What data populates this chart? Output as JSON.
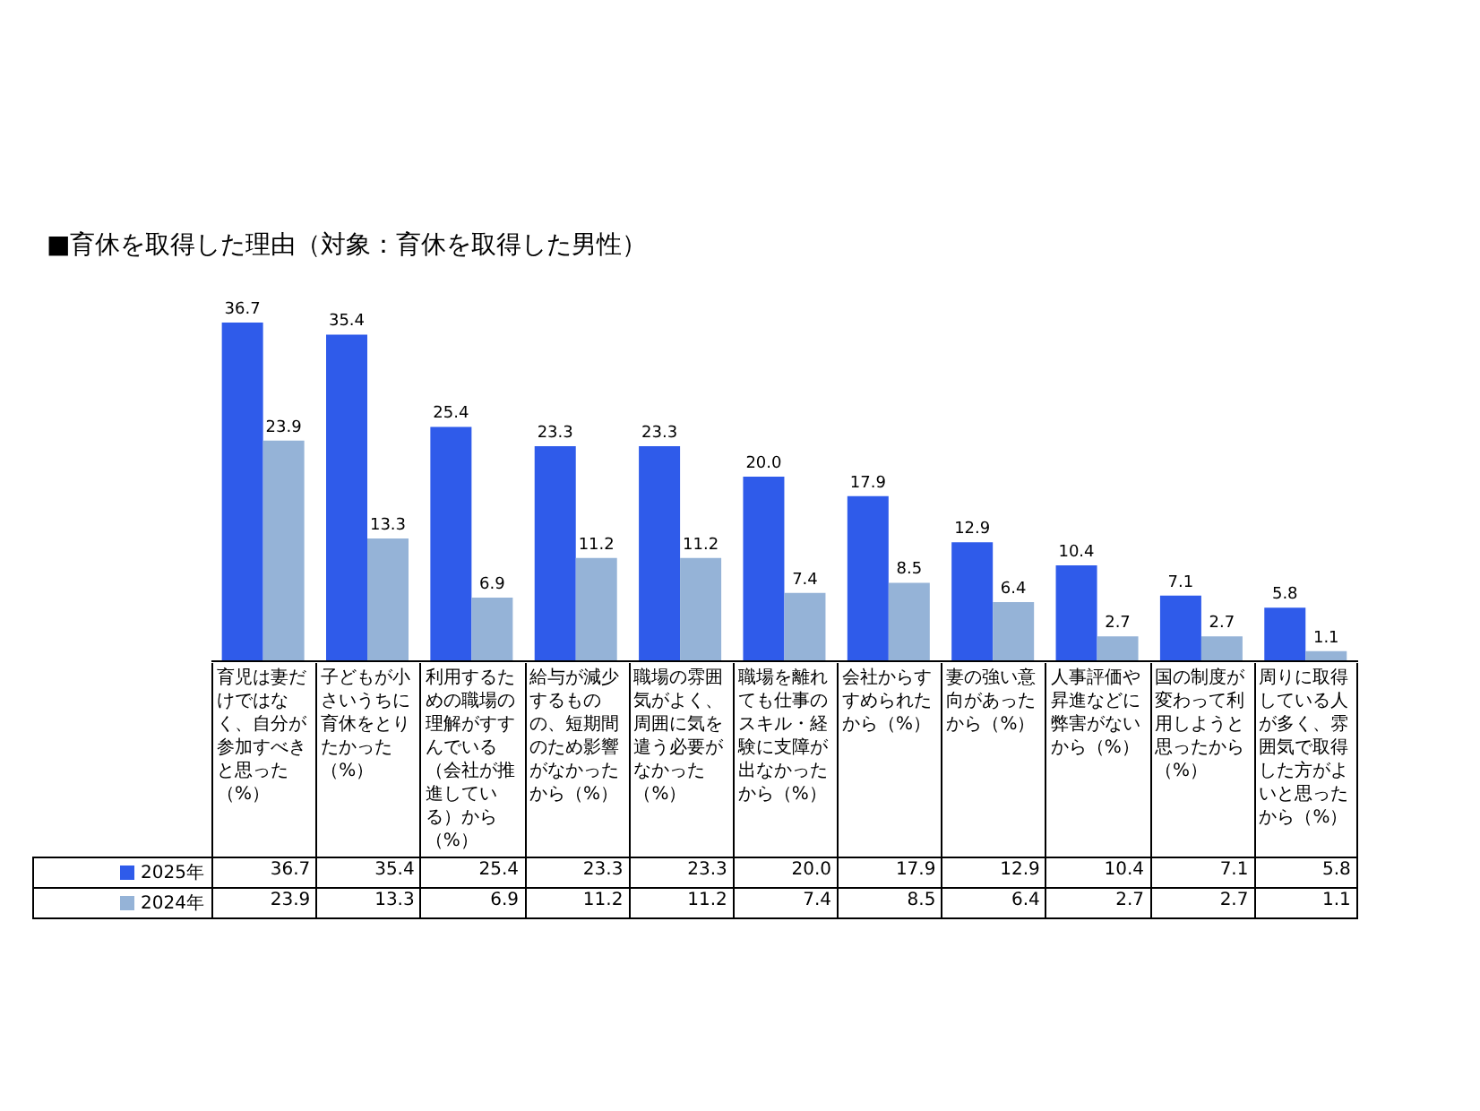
{
  "chart_data": {
    "type": "bar",
    "title": "■育休を取得した理由（対象：育休を取得した男性）",
    "categories": [
      "育児は妻だけではなく、自分が参加すべきと思った（%）",
      "子どもが小さいうちに育休をとりたかった（%）",
      "利用するための職場の理解がすすんでいる（会社が推進している）から（%）",
      "給与が減少するものの、短期間のため影響がなかったから（%）",
      "職場の雰囲気がよく、周囲に気を遣う必要がなかった（%）",
      "職場を離れても仕事のスキル・経験に支障が出なかったから（%）",
      "会社からすすめられたから（%）",
      "妻の強い意向があったから（%）",
      "人事評価や昇進などに弊害がないから（%）",
      "国の制度が変わって利用しようと思ったから（%）",
      "周りに取得している人が多く、雰囲気で取得した方がよいと思ったから（%）"
    ],
    "series": [
      {
        "name": "2025年",
        "color": "#2f5bea",
        "values": [
          36.7,
          35.4,
          25.4,
          23.3,
          23.3,
          20.0,
          17.9,
          12.9,
          10.4,
          7.1,
          5.8
        ],
        "value_labels": [
          "36.7",
          "35.4",
          "25.4",
          "23.3",
          "23.3",
          "20.0",
          "17.9",
          "12.9",
          "10.4",
          "7.1",
          "5.8"
        ]
      },
      {
        "name": "2024年",
        "color": "#95b3d7",
        "values": [
          23.9,
          13.3,
          6.9,
          11.2,
          11.2,
          7.4,
          8.5,
          6.4,
          2.7,
          2.7,
          1.1
        ],
        "value_labels": [
          "23.9",
          "13.3",
          "6.9",
          "11.2",
          "11.2",
          "7.4",
          "8.5",
          "6.4",
          "2.7",
          "2.7",
          "1.1"
        ]
      }
    ],
    "legend": "bottom left"
  }
}
